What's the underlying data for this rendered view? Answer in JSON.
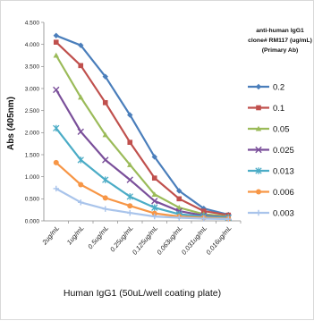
{
  "chart_data": {
    "type": "line",
    "xlabel": "Human IgG1 (50uL/well coating plate)",
    "ylabel": "Abs (405nm)",
    "ylim": [
      0,
      4.5
    ],
    "yticks": [
      "0.000",
      "0.500",
      "1.000",
      "1.500",
      "2.000",
      "2.500",
      "3.000",
      "3.500",
      "4.000",
      "4.500"
    ],
    "categories": [
      "2ug/mL",
      "1ug/mL",
      "0.5ug/mL",
      "0.25ug/mL",
      "0.125ug/mL",
      "0.063ug/mL",
      "0.031ug/mL",
      "0.016ug/mL"
    ],
    "legend_title": [
      "anti-human IgG1",
      "clone# RM117 (ug/mL)",
      "(Primary Ab)"
    ],
    "legend_position": "right",
    "grid": false,
    "series": [
      {
        "name": "0.2",
        "color": "#4a7ebb",
        "marker": "diamond",
        "values": [
          4.2,
          3.98,
          3.27,
          2.4,
          1.45,
          0.68,
          0.28,
          0.14
        ]
      },
      {
        "name": "0.1",
        "color": "#c0504d",
        "marker": "square",
        "values": [
          4.05,
          3.52,
          2.68,
          1.78,
          0.97,
          0.5,
          0.22,
          0.13
        ]
      },
      {
        "name": "0.05",
        "color": "#9bbb59",
        "marker": "triangle",
        "values": [
          3.75,
          2.8,
          1.95,
          1.27,
          0.6,
          0.3,
          0.15,
          0.1
        ]
      },
      {
        "name": "0.025",
        "color": "#7a4f9a",
        "marker": "x",
        "values": [
          2.97,
          2.02,
          1.38,
          0.93,
          0.45,
          0.22,
          0.12,
          0.08
        ]
      },
      {
        "name": "0.013",
        "color": "#4bacc6",
        "marker": "star",
        "values": [
          2.1,
          1.38,
          0.93,
          0.55,
          0.3,
          0.15,
          0.1,
          0.07
        ]
      },
      {
        "name": "0.006",
        "color": "#f79646",
        "marker": "circle",
        "values": [
          1.32,
          0.82,
          0.52,
          0.34,
          0.17,
          0.1,
          0.07,
          0.05
        ]
      },
      {
        "name": "0.003",
        "color": "#a9c4eb",
        "marker": "plus",
        "values": [
          0.73,
          0.42,
          0.27,
          0.18,
          0.1,
          0.07,
          0.05,
          0.04
        ]
      }
    ]
  }
}
